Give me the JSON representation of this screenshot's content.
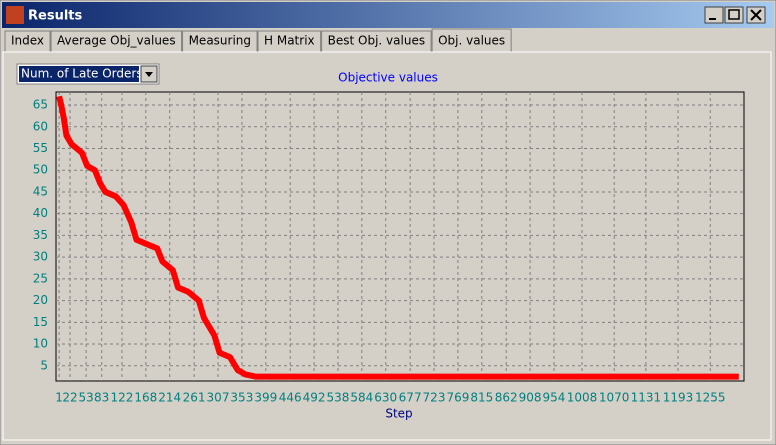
{
  "window": {
    "title": "Results"
  },
  "tabs": [
    "Index",
    "Average Obj_values",
    "Measuring",
    "H Matrix",
    "Best Obj. values",
    "Obj. values"
  ],
  "active_tab": 5,
  "dropdown": {
    "selected": "Num. of Late Orders"
  },
  "chart_data": {
    "type": "line",
    "title": "Objective values",
    "x_label": "Step",
    "color": "#ff0000",
    "grid": true,
    "x": [
      1,
      5,
      10,
      15,
      25,
      35,
      45,
      55,
      70,
      80,
      90,
      110,
      125,
      140,
      150,
      170,
      190,
      200,
      220,
      230,
      250,
      270,
      280,
      300,
      310,
      330,
      345,
      360,
      380,
      500,
      700,
      900,
      1100,
      1310
    ],
    "values": [
      67,
      65,
      62,
      58,
      56,
      55,
      54,
      51,
      50,
      47,
      45,
      44,
      42,
      38,
      34,
      33,
      32,
      29,
      27,
      23,
      22,
      20,
      16,
      12,
      8,
      7,
      4,
      3,
      2.5,
      2.5,
      2.5,
      2.5,
      2.5,
      2.5
    ],
    "xlim": [
      -5,
      1320
    ],
    "ylim": [
      1.5,
      68
    ],
    "xticks": [
      1,
      22,
      53,
      83,
      122,
      168,
      214,
      261,
      307,
      353,
      399,
      446,
      492,
      538,
      584,
      630,
      677,
      723,
      769,
      815,
      862,
      908,
      954,
      1008,
      1070,
      1131,
      1193,
      1255
    ],
    "yticks": [
      5,
      10,
      15,
      20,
      25,
      30,
      35,
      40,
      45,
      50,
      55,
      60,
      65
    ]
  }
}
